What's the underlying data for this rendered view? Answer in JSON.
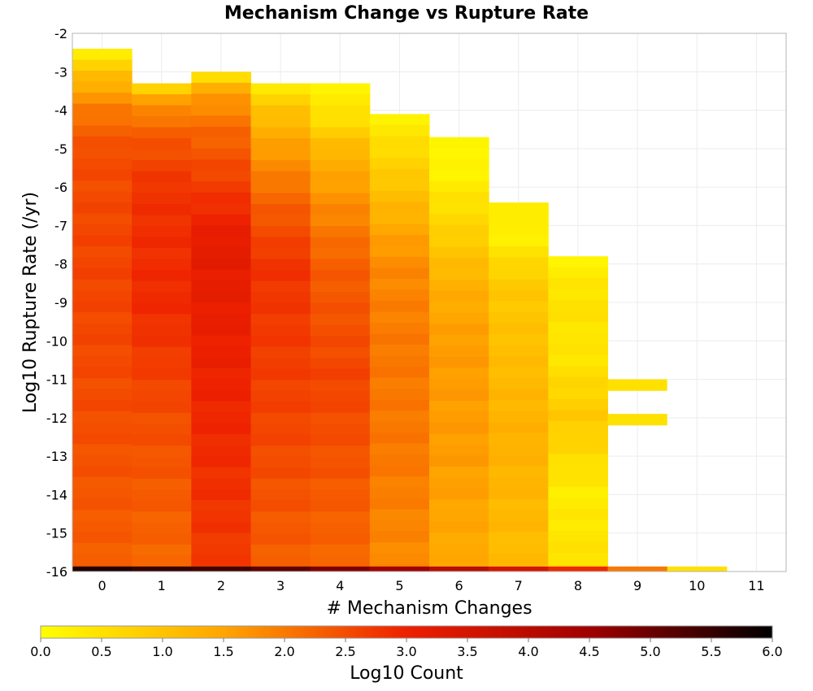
{
  "chart_data": {
    "type": "heatmap",
    "title": "Mechanism Change vs Rupture Rate",
    "xlabel": "# Mechanism Changes",
    "ylabel": "Log10 Rupture Rate (/yr)",
    "x_ticks": [
      "0",
      "1",
      "2",
      "3",
      "4",
      "5",
      "6",
      "7",
      "8",
      "9",
      "10",
      "11"
    ],
    "y_ticks": [
      "-2",
      "-3",
      "-4",
      "-5",
      "-6",
      "-7",
      "-8",
      "-9",
      "-10",
      "-11",
      "-12",
      "-13",
      "-14",
      "-15",
      "-16"
    ],
    "xlim": [
      -0.5,
      11.5
    ],
    "ylim": [
      -16,
      -2
    ],
    "grid": true,
    "colorbar": {
      "label": "Log10 Count",
      "ticks": [
        "0.0",
        "0.5",
        "1.0",
        "1.5",
        "2.0",
        "2.5",
        "3.0",
        "3.5",
        "4.0",
        "4.5",
        "5.0",
        "5.5",
        "6.0"
      ],
      "range": [
        0,
        6
      ],
      "stops": [
        "#ffff00",
        "#ffa500",
        "#ee2000",
        "#a00000",
        "#000000"
      ]
    },
    "bin_height": 0.2857,
    "columns": [
      {
        "x": 0,
        "y_top": -2.4,
        "floor_value": 5.7,
        "profile": [
          [
            -2.4,
            0.2
          ],
          [
            -3.2,
            1.2
          ],
          [
            -4.0,
            2.0
          ],
          [
            -5.0,
            2.5
          ],
          [
            -8.0,
            2.6
          ],
          [
            -12.0,
            2.5
          ],
          [
            -15.8,
            2.3
          ]
        ]
      },
      {
        "x": 1,
        "y_top": -3.3,
        "floor_value": 5.5,
        "profile": [
          [
            -3.3,
            0.3
          ],
          [
            -3.6,
            1.4
          ],
          [
            -4.5,
            2.3
          ],
          [
            -6.0,
            2.8
          ],
          [
            -9.0,
            2.9
          ],
          [
            -12.0,
            2.5
          ],
          [
            -15.8,
            2.2
          ]
        ]
      },
      {
        "x": 2,
        "y_top": -3.0,
        "floor_value": 5.4,
        "profile": [
          [
            -3.0,
            0.3
          ],
          [
            -3.5,
            1.5
          ],
          [
            -4.5,
            2.2
          ],
          [
            -6.0,
            2.7
          ],
          [
            -7.5,
            3.2
          ],
          [
            -11.0,
            3.0
          ],
          [
            -15.8,
            2.7
          ]
        ]
      },
      {
        "x": 3,
        "y_top": -3.3,
        "floor_value": 5.1,
        "profile": [
          [
            -3.3,
            0.3
          ],
          [
            -4.0,
            1.0
          ],
          [
            -5.0,
            1.6
          ],
          [
            -6.5,
            2.3
          ],
          [
            -8.0,
            2.8
          ],
          [
            -12.0,
            2.6
          ],
          [
            -15.8,
            2.3
          ]
        ]
      },
      {
        "x": 4,
        "y_top": -3.3,
        "floor_value": 4.8,
        "profile": [
          [
            -3.3,
            0.2
          ],
          [
            -4.2,
            0.5
          ],
          [
            -5.0,
            1.2
          ],
          [
            -6.5,
            1.8
          ],
          [
            -8.0,
            2.3
          ],
          [
            -11.0,
            2.6
          ],
          [
            -15.8,
            2.2
          ]
        ]
      },
      {
        "x": 5,
        "y_top": -4.1,
        "floor_value": 4.5,
        "profile": [
          [
            -4.1,
            0.2
          ],
          [
            -5.0,
            0.6
          ],
          [
            -6.5,
            1.2
          ],
          [
            -8.0,
            1.8
          ],
          [
            -10.0,
            2.0
          ],
          [
            -13.0,
            2.0
          ],
          [
            -15.8,
            1.8
          ]
        ]
      },
      {
        "x": 6,
        "y_top": -4.7,
        "floor_value": 4.0,
        "profile": [
          [
            -4.7,
            0.3
          ],
          [
            -5.3,
            0.1
          ],
          [
            -7.0,
            0.7
          ],
          [
            -8.5,
            1.3
          ],
          [
            -10.0,
            1.6
          ],
          [
            -13.0,
            1.6
          ],
          [
            -15.8,
            1.4
          ]
        ]
      },
      {
        "x": 7,
        "y_top": -6.4,
        "floor_value": 3.5,
        "profile": [
          [
            -6.4,
            0.4
          ],
          [
            -7.2,
            0.2
          ],
          [
            -8.5,
            0.9
          ],
          [
            -10.5,
            1.1
          ],
          [
            -12.5,
            1.3
          ],
          [
            -15.8,
            1.1
          ]
        ]
      },
      {
        "x": 8,
        "y_top": -7.8,
        "floor_value": 2.9,
        "profile": [
          [
            -7.8,
            0.2
          ],
          [
            -9.0,
            0.5
          ],
          [
            -10.3,
            0.4
          ],
          [
            -11.0,
            0.6
          ],
          [
            -12.0,
            0.9
          ],
          [
            -14.0,
            0.3
          ],
          [
            -15.8,
            0.5
          ]
        ]
      },
      {
        "x": 9,
        "y_top": -11.3,
        "floor_value": 2.0,
        "profile": [],
        "patches": [
          [
            -11.3,
            -11.0,
            0.5
          ],
          [
            -12.2,
            -11.9,
            0.5
          ]
        ]
      },
      {
        "x": 10,
        "y_top": -16.0,
        "floor_value": 0.5,
        "profile": []
      },
      {
        "x": 11,
        "y_top": -16.0,
        "floor_value": null,
        "profile": []
      }
    ]
  }
}
